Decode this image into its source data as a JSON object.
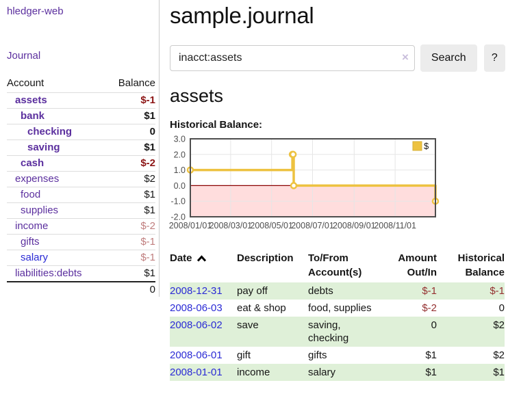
{
  "sidebar": {
    "app_title": "hledger-web",
    "nav": {
      "journal_label": "Journal"
    },
    "accounts_table": {
      "headers": {
        "account": "Account",
        "balance": "Balance"
      },
      "rows": [
        {
          "account": "assets",
          "level": 1,
          "bold": true,
          "blue": false,
          "balance": "$-1",
          "balance_style": "neg-strong"
        },
        {
          "account": "bank",
          "level": 2,
          "bold": true,
          "blue": false,
          "balance": "$1",
          "balance_style": ""
        },
        {
          "account": "checking",
          "level": 3,
          "bold": true,
          "blue": false,
          "balance": "0",
          "balance_style": ""
        },
        {
          "account": "saving",
          "level": 3,
          "bold": true,
          "blue": false,
          "balance": "$1",
          "balance_style": ""
        },
        {
          "account": "cash",
          "level": 2,
          "bold": true,
          "blue": false,
          "balance": "$-2",
          "balance_style": "neg-strong"
        },
        {
          "account": "expenses",
          "level": 1,
          "bold": false,
          "blue": false,
          "balance": "$2",
          "balance_style": ""
        },
        {
          "account": "food",
          "level": 2,
          "bold": false,
          "blue": false,
          "balance": "$1",
          "balance_style": ""
        },
        {
          "account": "supplies",
          "level": 2,
          "bold": false,
          "blue": false,
          "balance": "$1",
          "balance_style": ""
        },
        {
          "account": "income",
          "level": 1,
          "bold": false,
          "blue": false,
          "balance": "$-2",
          "balance_style": "neg-faded"
        },
        {
          "account": "gifts",
          "level": 2,
          "bold": false,
          "blue": false,
          "balance": "$-1",
          "balance_style": "neg-faded"
        },
        {
          "account": "salary",
          "level": 2,
          "bold": false,
          "blue": true,
          "balance": "$-1",
          "balance_style": "neg-faded"
        },
        {
          "account": "liabilities:debts",
          "level": 1,
          "bold": false,
          "blue": false,
          "balance": "$1",
          "balance_style": ""
        }
      ],
      "total": "0"
    }
  },
  "main": {
    "title": "sample.journal",
    "search": {
      "value": "inacct:assets",
      "clear_icon": "x-clear-icon",
      "search_button_label": "Search",
      "help_button_label": "?"
    },
    "account_heading": "assets",
    "chart_label": "Historical Balance:",
    "register_table": {
      "headers": {
        "date": "Date",
        "description": "Description",
        "accounts": "To/From Account(s)",
        "amount": "Amount Out/In",
        "balance": "Historical Balance"
      },
      "rows": [
        {
          "date": "2008-12-31",
          "description": "pay off",
          "accounts": "debts",
          "amount": "$-1",
          "amount_negative": true,
          "balance": "$-1",
          "balance_negative": true
        },
        {
          "date": "2008-06-03",
          "description": "eat & shop",
          "accounts": "food, supplies",
          "amount": "$-2",
          "amount_negative": true,
          "balance": "0",
          "balance_negative": false
        },
        {
          "date": "2008-06-02",
          "description": "save",
          "accounts": "saving, checking",
          "amount": "0",
          "amount_negative": false,
          "balance": "$2",
          "balance_negative": false
        },
        {
          "date": "2008-06-01",
          "description": "gift",
          "accounts": "gifts",
          "amount": "$1",
          "amount_negative": false,
          "balance": "$2",
          "balance_negative": false
        },
        {
          "date": "2008-01-01",
          "description": "income",
          "accounts": "salary",
          "amount": "$1",
          "amount_negative": false,
          "balance": "$1",
          "balance_negative": false
        }
      ]
    }
  },
  "chart_data": {
    "type": "line",
    "title": "Historical Balance:",
    "step": true,
    "series": [
      {
        "name": "$",
        "color": "#edc240",
        "points": [
          {
            "date": "2008-01-01",
            "value": 1
          },
          {
            "date": "2008-06-01",
            "value": 2
          },
          {
            "date": "2008-06-02",
            "value": 2
          },
          {
            "date": "2008-06-03",
            "value": 0
          },
          {
            "date": "2008-12-31",
            "value": -1
          }
        ]
      }
    ],
    "x_ticks": [
      "2008/01/01",
      "2008/03/01",
      "2008/05/01",
      "2008/07/01",
      "2008/09/01",
      "2008/11/01"
    ],
    "y_ticks": [
      3.0,
      2.0,
      1.0,
      0.0,
      -1.0,
      -2.0
    ],
    "ylim": [
      -2,
      3
    ],
    "xlim": [
      "2008-01-01",
      "2008-12-31"
    ],
    "grid": true,
    "legend_position": "top-right",
    "negative_region_color": "#ffdddd",
    "zero_line_color": "#8b0000"
  },
  "colors": {
    "accent_purple": "#5b2f9e",
    "link_blue": "#2a2ad5",
    "negative_strong": "#8c1414",
    "negative": "#943030",
    "negative_faded": "#c07e7e",
    "row_stripe_green": "#dff0d8",
    "chart_series_yellow": "#edc240",
    "chart_negative_bg": "#ffdddd",
    "chart_zero_line": "#8b0000",
    "chart_border": "#4d4d4d"
  }
}
